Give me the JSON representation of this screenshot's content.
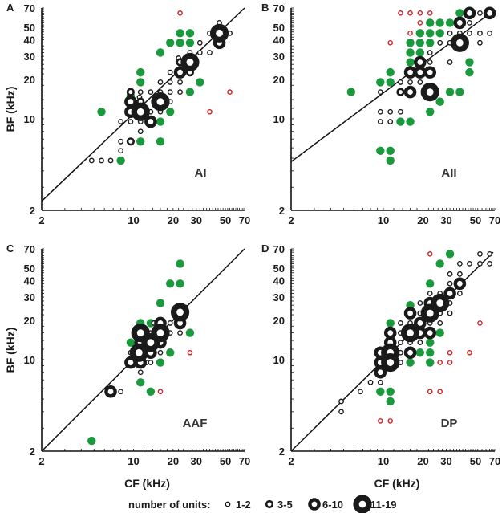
{
  "figure": {
    "legend": {
      "title": "number of units:",
      "entries": [
        {
          "label": "1-2",
          "size": "b1"
        },
        {
          "label": "3-5",
          "size": "b2"
        },
        {
          "label": "6-10",
          "size": "b3"
        },
        {
          "label": "11-19",
          "size": "b4"
        }
      ]
    },
    "colors": {
      "black": "#1a1a1a",
      "green": "#1a9a3c",
      "red": "#d4222a"
    }
  },
  "chart_data": [
    {
      "type": "scatter",
      "panel": "A",
      "region": "AI",
      "xlabel": "",
      "ylabel": "BF (kHz)",
      "xscale": "log",
      "yscale": "log",
      "xlim": [
        2,
        70
      ],
      "ylim": [
        2,
        70
      ],
      "xticks": [
        "2",
        "10",
        "20",
        "30",
        "50",
        "70"
      ],
      "yticks": [
        "2",
        "10",
        "20",
        "30",
        "40",
        "50",
        "70"
      ],
      "regression_line": [
        [
          2,
          2.35
        ],
        [
          70,
          70
        ]
      ],
      "point_format": [
        "CF",
        "BF",
        "class (b1-b4 = black by number of units, g = green, r = red)"
      ],
      "points": [
        [
          22.6,
          64,
          "r"
        ],
        [
          45,
          54,
          "b1"
        ],
        [
          38,
          45,
          "b1"
        ],
        [
          45,
          45,
          "b4"
        ],
        [
          54,
          45,
          "b1"
        ],
        [
          22.6,
          45,
          "g"
        ],
        [
          26.9,
          45,
          "g"
        ],
        [
          19,
          38,
          "g"
        ],
        [
          22.6,
          38,
          "g"
        ],
        [
          26.9,
          38,
          "g"
        ],
        [
          32,
          38,
          "b1"
        ],
        [
          45,
          38,
          "b3"
        ],
        [
          16,
          32,
          "g"
        ],
        [
          26.9,
          32,
          "b1"
        ],
        [
          32,
          32,
          "b1"
        ],
        [
          38,
          32,
          "b1"
        ],
        [
          22,
          29,
          "b1"
        ],
        [
          22.6,
          27,
          "b2"
        ],
        [
          26.9,
          27,
          "b4"
        ],
        [
          11.3,
          22.6,
          "g"
        ],
        [
          19,
          22.6,
          "b1"
        ],
        [
          22.6,
          22.6,
          "b3"
        ],
        [
          26.9,
          22.6,
          "b2"
        ],
        [
          11.3,
          19,
          "g"
        ],
        [
          16,
          19,
          "b1"
        ],
        [
          19,
          19,
          "b1"
        ],
        [
          22.6,
          19,
          "b1"
        ],
        [
          32,
          19,
          "g"
        ],
        [
          54,
          16,
          "r"
        ],
        [
          9.5,
          16,
          "b2"
        ],
        [
          11.3,
          16,
          "b1"
        ],
        [
          13.5,
          16,
          "b1"
        ],
        [
          16,
          16,
          "b1"
        ],
        [
          19,
          16,
          "b1"
        ],
        [
          22.6,
          16,
          "b1"
        ],
        [
          26.9,
          16,
          "g"
        ],
        [
          9.5,
          15,
          "g"
        ],
        [
          11.1,
          14.6,
          "b1"
        ],
        [
          9.5,
          13.5,
          "b3"
        ],
        [
          11.3,
          13.5,
          "b2"
        ],
        [
          16,
          13.5,
          "b4"
        ],
        [
          19,
          13.5,
          "b1"
        ],
        [
          9.5,
          11.3,
          "b3"
        ],
        [
          11.3,
          11.3,
          "b4"
        ],
        [
          13.5,
          11.3,
          "b1"
        ],
        [
          16,
          11.3,
          "b1"
        ],
        [
          19,
          11.3,
          "g"
        ],
        [
          38,
          11.3,
          "r"
        ],
        [
          5.7,
          11.3,
          "g"
        ],
        [
          8,
          9.5,
          "b1"
        ],
        [
          9.5,
          9.5,
          "b1"
        ],
        [
          11.3,
          9.5,
          "b1"
        ],
        [
          13.5,
          9.5,
          "b3"
        ],
        [
          16,
          9.5,
          "g"
        ],
        [
          11.3,
          8,
          "b1"
        ],
        [
          8,
          6.7,
          "b1"
        ],
        [
          9.5,
          6.7,
          "b2"
        ],
        [
          11.3,
          6.7,
          "g"
        ],
        [
          16,
          6.7,
          "g"
        ],
        [
          8,
          5.7,
          "b1"
        ],
        [
          4.8,
          4.8,
          "b1"
        ],
        [
          5.7,
          4.8,
          "b1"
        ],
        [
          6.7,
          4.8,
          "b1"
        ],
        [
          8,
          4.8,
          "g"
        ]
      ]
    },
    {
      "type": "scatter",
      "panel": "B",
      "region": "AII",
      "xlabel": "",
      "ylabel": "",
      "xscale": "log",
      "yscale": "log",
      "xlim": [
        2,
        70
      ],
      "ylim": [
        2,
        70
      ],
      "xticks": [
        "2",
        "10",
        "20",
        "30",
        "50",
        "70"
      ],
      "yticks": [
        "2",
        "10",
        "20",
        "30",
        "40",
        "50",
        "70"
      ],
      "regression_line": [
        [
          2,
          4.7
        ],
        [
          70,
          68
        ]
      ],
      "points": [
        [
          13.5,
          64,
          "r"
        ],
        [
          16,
          64,
          "r"
        ],
        [
          19,
          64,
          "r"
        ],
        [
          22.6,
          64,
          "r"
        ],
        [
          38,
          64,
          "g"
        ],
        [
          45,
          64,
          "b3"
        ],
        [
          54,
          64,
          "b1"
        ],
        [
          64,
          64,
          "b3"
        ],
        [
          19,
          54,
          "r"
        ],
        [
          22.6,
          54,
          "g"
        ],
        [
          26.9,
          54,
          "g"
        ],
        [
          32,
          54,
          "g"
        ],
        [
          38,
          54,
          "b3"
        ],
        [
          45,
          54,
          "b1"
        ],
        [
          16,
          45,
          "r"
        ],
        [
          19,
          45,
          "g"
        ],
        [
          22.6,
          45,
          "g"
        ],
        [
          26.9,
          45,
          "g"
        ],
        [
          32,
          45,
          "b1"
        ],
        [
          38,
          45,
          "b1"
        ],
        [
          45,
          45,
          "b1"
        ],
        [
          54,
          45,
          "b1"
        ],
        [
          64,
          45,
          "b1"
        ],
        [
          11.3,
          38,
          "r"
        ],
        [
          16,
          38,
          "g"
        ],
        [
          19,
          38,
          "g"
        ],
        [
          22.6,
          38,
          "g"
        ],
        [
          26.9,
          38,
          "b1"
        ],
        [
          32,
          38,
          "b1"
        ],
        [
          38,
          38,
          "b4"
        ],
        [
          54,
          38,
          "b1"
        ],
        [
          16,
          32,
          "g"
        ],
        [
          19,
          32,
          "g"
        ],
        [
          22.6,
          32,
          "b1"
        ],
        [
          16,
          27,
          "g"
        ],
        [
          19,
          27,
          "b3"
        ],
        [
          22.6,
          27,
          "b1"
        ],
        [
          32,
          27,
          "b1"
        ],
        [
          45,
          27,
          "g"
        ],
        [
          11.3,
          22.6,
          "g"
        ],
        [
          16,
          22.6,
          "b3"
        ],
        [
          19,
          22.6,
          "b3"
        ],
        [
          22.6,
          22.6,
          "b3"
        ],
        [
          45,
          22.6,
          "g"
        ],
        [
          9.5,
          19,
          "g"
        ],
        [
          11.3,
          19,
          "g"
        ],
        [
          13.5,
          19,
          "b1"
        ],
        [
          16,
          19,
          "b1"
        ],
        [
          19,
          19,
          "b1"
        ],
        [
          5.7,
          16,
          "g"
        ],
        [
          9.5,
          16,
          "b1"
        ],
        [
          13.5,
          16,
          "b2"
        ],
        [
          16,
          16,
          "b3"
        ],
        [
          22.6,
          16,
          "b4"
        ],
        [
          32,
          16,
          "g"
        ],
        [
          38,
          16,
          "g"
        ],
        [
          26.9,
          13.5,
          "g"
        ],
        [
          9.5,
          11.3,
          "b1"
        ],
        [
          11.3,
          11.3,
          "b1"
        ],
        [
          13.5,
          11.3,
          "b1"
        ],
        [
          22.6,
          11.3,
          "g"
        ],
        [
          9.5,
          9.5,
          "b1"
        ],
        [
          11.3,
          9.5,
          "b1"
        ],
        [
          13.5,
          9.5,
          "g"
        ],
        [
          16,
          9.5,
          "g"
        ],
        [
          9.5,
          5.7,
          "g"
        ],
        [
          11.3,
          5.7,
          "g"
        ],
        [
          11.3,
          4.8,
          "g"
        ]
      ]
    },
    {
      "type": "scatter",
      "panel": "C",
      "region": "AAF",
      "xlabel": "CF (kHz)",
      "ylabel": "BF (kHz)",
      "xscale": "log",
      "yscale": "log",
      "xlim": [
        2,
        70
      ],
      "ylim": [
        2,
        70
      ],
      "xticks": [
        "2",
        "10",
        "20",
        "30",
        "50",
        "70"
      ],
      "yticks": [
        "2",
        "10",
        "20",
        "30",
        "40",
        "50",
        "70"
      ],
      "regression_line": [
        [
          2,
          2
        ],
        [
          70,
          70
        ]
      ],
      "points": [
        [
          22.6,
          54,
          "g"
        ],
        [
          19,
          38,
          "g"
        ],
        [
          22.6,
          38,
          "g"
        ],
        [
          16,
          27,
          "g"
        ],
        [
          25,
          25,
          "b1"
        ],
        [
          22.6,
          23,
          "b4"
        ],
        [
          11.3,
          19,
          "g"
        ],
        [
          13.5,
          19,
          "g"
        ],
        [
          14.3,
          19,
          "b1"
        ],
        [
          16,
          19,
          "b3"
        ],
        [
          19,
          19,
          "b1"
        ],
        [
          22.6,
          19,
          "b3"
        ],
        [
          11.3,
          16,
          "b4"
        ],
        [
          13.5,
          16,
          "b1"
        ],
        [
          16,
          16,
          "b4"
        ],
        [
          19,
          16,
          "b1"
        ],
        [
          22.6,
          16,
          "b1"
        ],
        [
          26.9,
          16,
          "g"
        ],
        [
          9.5,
          13.5,
          "g"
        ],
        [
          11.3,
          13.5,
          "b3"
        ],
        [
          13.5,
          13.5,
          "b4"
        ],
        [
          16,
          13.5,
          "b3"
        ],
        [
          9.5,
          11.3,
          "b1"
        ],
        [
          11,
          11.3,
          "b4"
        ],
        [
          13.5,
          11.3,
          "b3"
        ],
        [
          16,
          11.3,
          "b1"
        ],
        [
          19,
          11.3,
          "g"
        ],
        [
          26.9,
          11.3,
          "r"
        ],
        [
          9.5,
          9.5,
          "b3"
        ],
        [
          11.3,
          9.5,
          "b3"
        ],
        [
          12.5,
          9.5,
          "b1"
        ],
        [
          13.5,
          9.5,
          "b1"
        ],
        [
          16,
          9.5,
          "g"
        ],
        [
          11.3,
          8,
          "b1"
        ],
        [
          11.3,
          6.7,
          "g"
        ],
        [
          6.7,
          5.7,
          "b3"
        ],
        [
          8,
          5.7,
          "b1"
        ],
        [
          13.5,
          5.7,
          "g"
        ],
        [
          16,
          5.7,
          "r"
        ],
        [
          4.8,
          2.4,
          "g"
        ]
      ]
    },
    {
      "type": "scatter",
      "panel": "D",
      "region": "DP",
      "xlabel": "CF (kHz)",
      "ylabel": "",
      "xscale": "log",
      "yscale": "log",
      "xlim": [
        2,
        70
      ],
      "ylim": [
        2,
        70
      ],
      "xticks": [
        "2",
        "10",
        "20",
        "30",
        "50",
        "70"
      ],
      "yticks": [
        "2",
        "10",
        "20",
        "30",
        "40",
        "50",
        "70"
      ],
      "regression_line": [
        [
          2,
          2
        ],
        [
          68,
          66
        ]
      ],
      "points": [
        [
          22.6,
          64,
          "r"
        ],
        [
          32,
          64,
          "g"
        ],
        [
          54,
          64,
          "b1"
        ],
        [
          64,
          64,
          "b1"
        ],
        [
          26.9,
          54,
          "g"
        ],
        [
          38,
          54,
          "b1"
        ],
        [
          45,
          54,
          "b1"
        ],
        [
          54,
          54,
          "b1"
        ],
        [
          64,
          54,
          "b1"
        ],
        [
          32,
          45,
          "b1"
        ],
        [
          38,
          45,
          "b1"
        ],
        [
          22.6,
          38,
          "g"
        ],
        [
          32,
          38,
          "b1"
        ],
        [
          38,
          38,
          "b3"
        ],
        [
          22.6,
          32,
          "b1"
        ],
        [
          26.9,
          32,
          "b1"
        ],
        [
          32,
          32,
          "b3"
        ],
        [
          38,
          32,
          "b1"
        ],
        [
          16,
          26,
          "g"
        ],
        [
          19,
          27,
          "b1"
        ],
        [
          22.6,
          27,
          "b3"
        ],
        [
          26.9,
          27,
          "b4"
        ],
        [
          32,
          27,
          "b1"
        ],
        [
          16,
          22.6,
          "b3"
        ],
        [
          19,
          22.6,
          "b1"
        ],
        [
          22.6,
          22.6,
          "b4"
        ],
        [
          26.9,
          22.6,
          "b1"
        ],
        [
          32,
          22.6,
          "b1"
        ],
        [
          11.3,
          19,
          "g"
        ],
        [
          13.5,
          19,
          "b1"
        ],
        [
          16,
          19,
          "b1"
        ],
        [
          19,
          19,
          "b3"
        ],
        [
          22.6,
          19,
          "b1"
        ],
        [
          26.9,
          19,
          "b1"
        ],
        [
          54,
          19,
          "r"
        ],
        [
          11.3,
          16,
          "b3"
        ],
        [
          13.5,
          16,
          "b1"
        ],
        [
          16,
          16,
          "b4"
        ],
        [
          19,
          16,
          "b3"
        ],
        [
          22.6,
          16,
          "b3"
        ],
        [
          26.9,
          16,
          "g"
        ],
        [
          11.3,
          13.5,
          "b3"
        ],
        [
          13.5,
          13.5,
          "b1"
        ],
        [
          16,
          13.5,
          "b1"
        ],
        [
          19,
          13.5,
          "b1"
        ],
        [
          22.6,
          13.5,
          "g"
        ],
        [
          9.5,
          11.3,
          "b3"
        ],
        [
          11.3,
          11.3,
          "b4"
        ],
        [
          13.5,
          11.3,
          "b1"
        ],
        [
          16,
          11.3,
          "b3"
        ],
        [
          19,
          11.3,
          "g"
        ],
        [
          22.6,
          11.3,
          "g"
        ],
        [
          32,
          11.3,
          "r"
        ],
        [
          45,
          11.3,
          "r"
        ],
        [
          9.5,
          9.5,
          "b3"
        ],
        [
          11.3,
          9.5,
          "b4"
        ],
        [
          13.5,
          9.5,
          "b1"
        ],
        [
          16,
          9.5,
          "g"
        ],
        [
          22.6,
          9.5,
          "g"
        ],
        [
          26.9,
          9.5,
          "r"
        ],
        [
          32,
          9.5,
          "r"
        ],
        [
          9.5,
          8,
          "b3"
        ],
        [
          8,
          6.7,
          "b1"
        ],
        [
          9.5,
          6.7,
          "b1"
        ],
        [
          6.7,
          5.7,
          "b1"
        ],
        [
          9.5,
          5.7,
          "g"
        ],
        [
          11.3,
          5.7,
          "g"
        ],
        [
          22.6,
          5.7,
          "r"
        ],
        [
          26.9,
          5.7,
          "r"
        ],
        [
          4.8,
          4.8,
          "b1"
        ],
        [
          11.3,
          4.8,
          "g"
        ],
        [
          4.8,
          4.0,
          "b1"
        ],
        [
          9.5,
          3.4,
          "r"
        ],
        [
          11.3,
          3.4,
          "r"
        ]
      ]
    }
  ]
}
